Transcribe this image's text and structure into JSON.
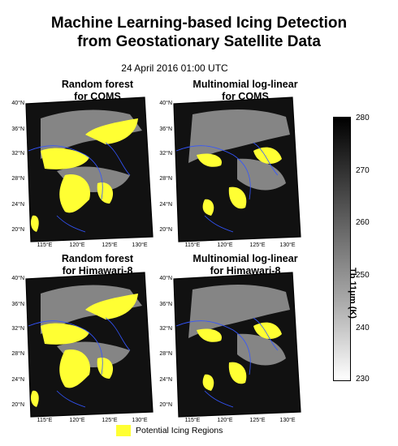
{
  "title_line1": "Machine Learning-based Icing Detection",
  "title_line2": "from Geostationary Satellite Data",
  "datetime": "24 April 2016 01:00 UTC",
  "panels": [
    {
      "line1": "Random forest",
      "line2": "for COMS"
    },
    {
      "line1": "Multinomial log-linear",
      "line2": "for COMS"
    },
    {
      "line1": "Random forest",
      "line2": "for Himawari-8"
    },
    {
      "line1": "Multinomial log-linear",
      "line2": "for Himawari-8"
    }
  ],
  "lat_ticks": [
    "40°N",
    "36°N",
    "32°N",
    "28°N",
    "24°N",
    "20°N"
  ],
  "lon_ticks": [
    "115°E",
    "120°E",
    "125°E",
    "130°E"
  ],
  "colorbar": {
    "title": "Tb 11μm (K)",
    "ticks": [
      "280",
      "270",
      "260",
      "250",
      "240",
      "230"
    ],
    "min": 230,
    "max": 280
  },
  "legend": {
    "label": "Potential Icing Regions",
    "color": "#ffff33"
  }
}
